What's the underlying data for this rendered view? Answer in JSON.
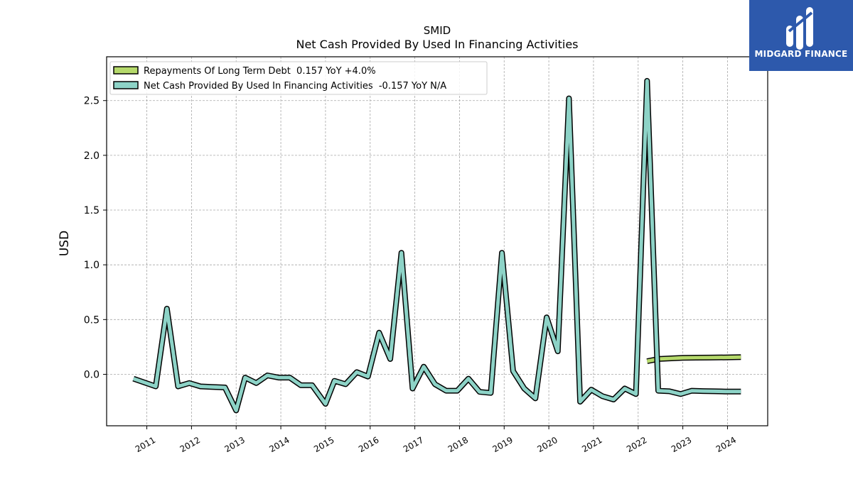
{
  "chart_data": {
    "type": "line",
    "title": "SMID",
    "subtitle": "Net Cash Provided By Used In Financing Activities",
    "xlabel": "",
    "ylabel": "USD",
    "ylim": [
      -0.47,
      2.9
    ],
    "xlim": [
      2010.1,
      2024.9
    ],
    "y_ticks": [
      "0.0",
      "0.5",
      "1.0",
      "1.5",
      "2.0",
      "2.5"
    ],
    "x_ticks": [
      "2011",
      "2012",
      "2013",
      "2014",
      "2015",
      "2016",
      "2017",
      "2018",
      "2019",
      "2020",
      "2021",
      "2022",
      "2023",
      "2024"
    ],
    "grid": true,
    "legend_position": "top-left",
    "series": [
      {
        "name": "Repayments Of Long Term Debt  0.157 YoY +4.0%",
        "color": "#b5d96b",
        "points": [
          [
            2022.2,
            0.12
          ],
          [
            2022.45,
            0.14
          ],
          [
            2022.7,
            0.145
          ],
          [
            2023.0,
            0.15
          ],
          [
            2023.3,
            0.152
          ],
          [
            2023.6,
            0.153
          ],
          [
            2024.0,
            0.155
          ],
          [
            2024.3,
            0.157
          ]
        ]
      },
      {
        "name": "Net Cash Provided By Used In Financing Activities  -0.157 YoY N/A",
        "color": "#8dd3c7",
        "points": [
          [
            2010.7,
            -0.04
          ],
          [
            2011.2,
            -0.11
          ],
          [
            2011.45,
            0.6
          ],
          [
            2011.7,
            -0.11
          ],
          [
            2011.95,
            -0.08
          ],
          [
            2012.2,
            -0.11
          ],
          [
            2012.45,
            -0.115
          ],
          [
            2012.75,
            -0.12
          ],
          [
            2013.0,
            -0.33
          ],
          [
            2013.2,
            -0.03
          ],
          [
            2013.45,
            -0.08
          ],
          [
            2013.7,
            -0.01
          ],
          [
            2013.95,
            -0.03
          ],
          [
            2014.2,
            -0.03
          ],
          [
            2014.45,
            -0.1
          ],
          [
            2014.7,
            -0.1
          ],
          [
            2015.0,
            -0.27
          ],
          [
            2015.2,
            -0.06
          ],
          [
            2015.45,
            -0.09
          ],
          [
            2015.7,
            0.02
          ],
          [
            2015.95,
            -0.02
          ],
          [
            2016.2,
            0.38
          ],
          [
            2016.45,
            0.14
          ],
          [
            2016.7,
            1.11
          ],
          [
            2016.95,
            -0.13
          ],
          [
            2017.2,
            0.07
          ],
          [
            2017.45,
            -0.09
          ],
          [
            2017.7,
            -0.15
          ],
          [
            2017.95,
            -0.15
          ],
          [
            2018.2,
            -0.04
          ],
          [
            2018.45,
            -0.16
          ],
          [
            2018.7,
            -0.17
          ],
          [
            2018.95,
            1.11
          ],
          [
            2019.2,
            0.03
          ],
          [
            2019.45,
            -0.13
          ],
          [
            2019.7,
            -0.22
          ],
          [
            2019.95,
            0.52
          ],
          [
            2020.2,
            0.21
          ],
          [
            2020.45,
            2.52
          ],
          [
            2020.7,
            -0.25
          ],
          [
            2020.95,
            -0.14
          ],
          [
            2021.2,
            -0.2
          ],
          [
            2021.45,
            -0.23
          ],
          [
            2021.7,
            -0.13
          ],
          [
            2021.95,
            -0.18
          ],
          [
            2022.2,
            2.68
          ],
          [
            2022.45,
            -0.15
          ],
          [
            2022.7,
            -0.155
          ],
          [
            2022.95,
            -0.18
          ],
          [
            2023.2,
            -0.15
          ],
          [
            2023.45,
            -0.153
          ],
          [
            2023.7,
            -0.155
          ],
          [
            2023.95,
            -0.157
          ],
          [
            2024.3,
            -0.157
          ]
        ]
      }
    ]
  },
  "logo": {
    "text": "MIDGARD FINANCE",
    "bg_color": "#2d59ac"
  }
}
